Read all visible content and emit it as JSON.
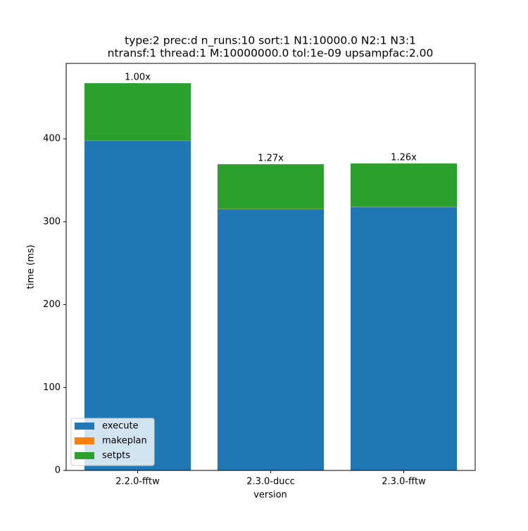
{
  "chart_data": {
    "type": "stacked_bar",
    "title": [
      "type:2 prec:d n_runs:10 sort:1 N1:10000.0 N2:1 N3:1",
      "ntransf:1 thread:1 M:10000000.0 tol:1e-09 upsampfac:2.00"
    ],
    "x_label": "version",
    "y_label": "time (ms)",
    "categories": [
      "2.2.0-fftw",
      "2.3.0-ducc",
      "2.3.0-fftw"
    ],
    "series": [
      {
        "name": "execute",
        "color": "#1f77b4",
        "values": [
          397.5,
          315.1,
          317.6
        ]
      },
      {
        "name": "makeplan",
        "color": "#ff7f0e",
        "values": [
          0.3,
          0.3,
          0.3
        ]
      },
      {
        "name": "setpts",
        "color": "#2ca02c",
        "values": [
          69.3,
          54.0,
          52.4
        ]
      }
    ],
    "speedup_labels": [
      "1.00x",
      "1.27x",
      "1.26x"
    ],
    "ylim": [
      0,
      491
    ],
    "yticks": [
      0,
      100,
      200,
      300,
      400
    ],
    "legend": "lower left"
  }
}
